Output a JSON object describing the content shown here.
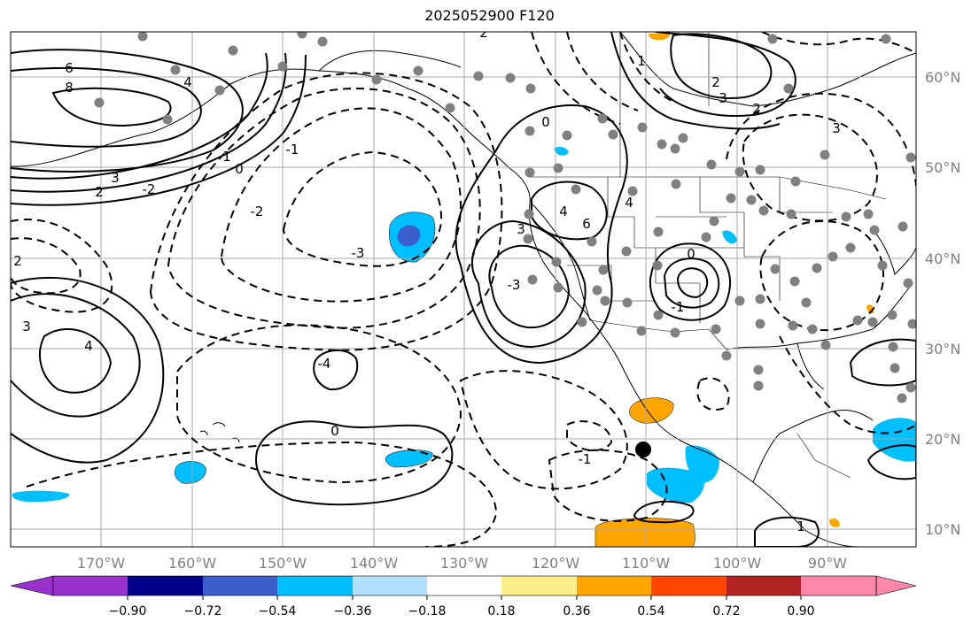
{
  "title": "2025052900 F120",
  "map": {
    "lon_labels": [
      "170°W",
      "160°W",
      "150°W",
      "140°W",
      "130°W",
      "120°W",
      "110°W",
      "100°W",
      "90°W"
    ],
    "lat_labels": [
      "60°N",
      "50°N",
      "40°N",
      "30°N",
      "20°N",
      "10°N"
    ],
    "contour_labels": [
      "6",
      "8",
      "4",
      "3",
      "2",
      "1",
      "0",
      "-1",
      "-2",
      "-3",
      "-4",
      "2",
      "3",
      "4",
      "6",
      "2",
      "3",
      "4",
      "3",
      "2",
      "1",
      "0",
      "-1",
      "0",
      "1",
      "-1",
      "0",
      "2",
      "3",
      "4",
      "-2",
      "-3"
    ]
  },
  "colorbar": {
    "colors": [
      "#9932cc",
      "#00008b",
      "#3a5fcd",
      "#00bfff",
      "#b0e2ff",
      "#ffffff",
      "#ffec8b",
      "#ffa500",
      "#ff4500",
      "#b22222",
      "#ff88aa"
    ],
    "tick_labels": [
      "−0.90",
      "−0.72",
      "−0.54",
      "−0.36",
      "−0.18",
      "0.18",
      "0.36",
      "0.54",
      "0.72",
      "0.90"
    ]
  }
}
